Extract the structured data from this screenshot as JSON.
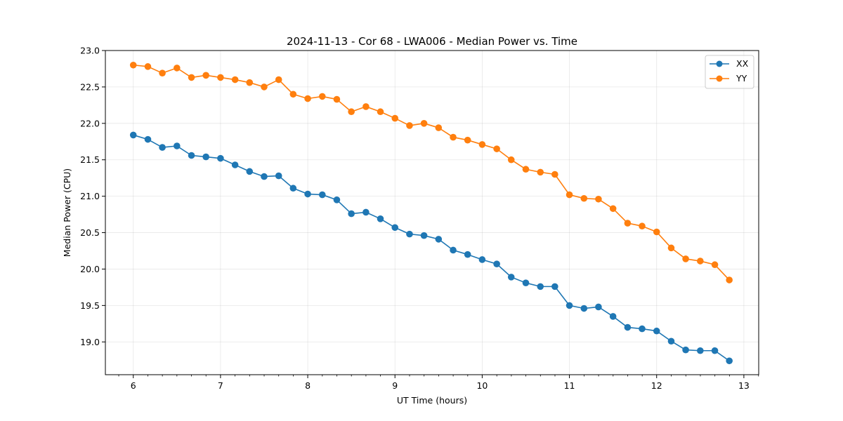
{
  "chart_data": {
    "type": "line",
    "title": "2024-11-13 - Cor 68 - LWA006 - Median Power vs. Time",
    "xlabel": "UT Time (hours)",
    "ylabel": "Median Power (CPU)",
    "xlim": [
      5.68,
      13.17
    ],
    "ylim": [
      18.55,
      23.0
    ],
    "xticks": [
      6,
      7,
      8,
      9,
      10,
      11,
      12,
      13
    ],
    "yticks": [
      19.0,
      19.5,
      20.0,
      20.5,
      21.0,
      21.5,
      22.0,
      22.5,
      23.0
    ],
    "minor_x_step": 0.1667,
    "grid": true,
    "legend_position": "top-right",
    "x": [
      6.0,
      6.167,
      6.333,
      6.5,
      6.667,
      6.833,
      7.0,
      7.167,
      7.333,
      7.5,
      7.667,
      7.833,
      8.0,
      8.167,
      8.333,
      8.5,
      8.667,
      8.833,
      9.0,
      9.167,
      9.333,
      9.5,
      9.667,
      9.833,
      10.0,
      10.167,
      10.333,
      10.5,
      10.667,
      10.833,
      11.0,
      11.167,
      11.333,
      11.5,
      11.667,
      11.833,
      12.0,
      12.167,
      12.333,
      12.5,
      12.667,
      12.833
    ],
    "series": [
      {
        "name": "XX",
        "color": "#1f77b4",
        "values": [
          21.84,
          21.78,
          21.67,
          21.69,
          21.56,
          21.54,
          21.52,
          21.43,
          21.34,
          21.27,
          21.28,
          21.11,
          21.03,
          21.02,
          20.95,
          20.76,
          20.78,
          20.69,
          20.57,
          20.48,
          20.46,
          20.41,
          20.26,
          20.2,
          20.13,
          20.07,
          19.89,
          19.81,
          19.76,
          19.76,
          19.5,
          19.46,
          19.48,
          19.35,
          19.2,
          19.18,
          19.15,
          19.01,
          18.89,
          18.88,
          18.88,
          18.74
        ]
      },
      {
        "name": "YY",
        "color": "#ff7f0e",
        "values": [
          22.8,
          22.78,
          22.69,
          22.76,
          22.63,
          22.66,
          22.63,
          22.6,
          22.56,
          22.5,
          22.6,
          22.4,
          22.34,
          22.37,
          22.33,
          22.16,
          22.23,
          22.16,
          22.07,
          21.97,
          22.0,
          21.94,
          21.81,
          21.77,
          21.71,
          21.65,
          21.5,
          21.37,
          21.33,
          21.3,
          21.02,
          20.97,
          20.96,
          20.83,
          20.63,
          20.59,
          20.51,
          20.29,
          20.14,
          20.11,
          20.06,
          19.85
        ]
      }
    ]
  }
}
